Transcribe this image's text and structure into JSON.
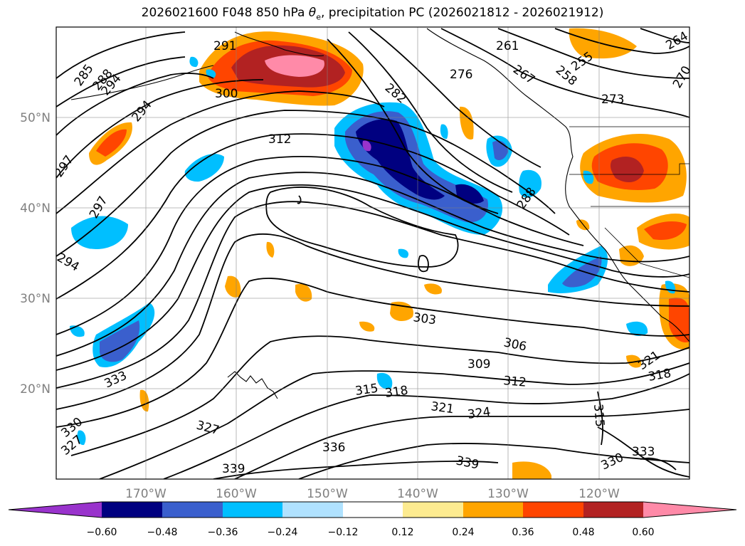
{
  "title": {
    "prefix": "2026021600 F048 850 hPa ",
    "theta": "θ",
    "theta_sub": "e",
    "suffix": ", precipitation PC (2026021812 - 2026021912)"
  },
  "axes": {
    "lon_labels": [
      "170°W",
      "160°W",
      "150°W",
      "140°W",
      "130°W",
      "120°W"
    ],
    "lat_labels": [
      "50°N",
      "40°N",
      "30°N",
      "20°N"
    ]
  },
  "contour_labels": [
    "285",
    "288",
    "294",
    "291",
    "300",
    "294",
    "297",
    "297",
    "294",
    "312",
    "282",
    "261",
    "276",
    "267",
    "258",
    "255",
    "264",
    "270",
    "273",
    "288",
    "303",
    "306",
    "309",
    "312",
    "315",
    "318",
    "321",
    "324",
    "327",
    "330",
    "327",
    "336",
    "339",
    "339",
    "333",
    "330",
    "333",
    "315",
    "321",
    "318"
  ],
  "colorbar": {
    "colors": [
      "#9933cc",
      "#000080",
      "#3a5fcd",
      "#00bfff",
      "#b0e2ff",
      "#ffffff",
      "#fdeb90",
      "#ffa500",
      "#ff4500",
      "#b22222",
      "#ff8aa8"
    ],
    "labels": [
      "−0.60",
      "−0.48",
      "−0.36",
      "−0.24",
      "−0.12",
      "0.12",
      "0.24",
      "0.36",
      "0.48",
      "0.60"
    ]
  }
}
